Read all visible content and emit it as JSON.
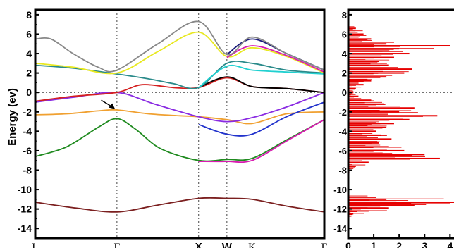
{
  "chart_data": [
    {
      "type": "line",
      "title": "",
      "ylabel": "Energy (ev)",
      "xlabel": "",
      "ylim": [
        -15,
        8.5
      ],
      "xlim": [
        0,
        4.6
      ],
      "yticks": [
        8,
        6,
        4,
        2,
        0,
        -2,
        -4,
        -6,
        -8,
        -10,
        -12,
        -14
      ],
      "kpoints": [
        {
          "label": "L",
          "x": 0,
          "bold": false
        },
        {
          "label": "Γ",
          "x": 1.3,
          "bold": false
        },
        {
          "label": "X",
          "x": 2.6,
          "bold": true
        },
        {
          "label": "W",
          "x": 3.05,
          "bold": true
        },
        {
          "label": "K",
          "x": 3.45,
          "bold": false
        },
        {
          "label": "Γ",
          "x": 4.6,
          "bold": false
        }
      ],
      "fermi_level": 0,
      "grid": "vertical dotted lines at k-points; horizontal dotted line at 0",
      "annotation": {
        "type": "arrow",
        "from": [
          1.05,
          -0.8
        ],
        "to": [
          1.27,
          -1.7
        ]
      },
      "series": [
        {
          "color": "#7b1f1f",
          "x": [
            0,
            0.65,
            1.3,
            1.95,
            2.6,
            3.05,
            3.45,
            4.0,
            4.6
          ],
          "y": [
            -11.3,
            -11.9,
            -12.3,
            -11.6,
            -10.9,
            -10.9,
            -11.0,
            -11.7,
            -12.3
          ]
        },
        {
          "color": "#1f8a1f",
          "x": [
            0,
            0.5,
            1.0,
            1.3,
            1.6,
            2.0,
            2.6,
            3.05,
            3.45,
            4.0,
            4.6
          ],
          "y": [
            -6.6,
            -5.6,
            -3.6,
            -2.7,
            -3.8,
            -5.8,
            -7.0,
            -6.9,
            -6.8,
            -4.9,
            -2.8
          ]
        },
        {
          "color": "#d81bb0",
          "x": [
            2.6,
            3.05,
            3.45,
            4.0,
            4.6
          ],
          "y": [
            -7.1,
            -7.1,
            -7.0,
            -5.0,
            -2.8
          ]
        },
        {
          "color": "#f0a030",
          "x": [
            0,
            0.5,
            1.0,
            1.3,
            1.8,
            2.3,
            2.6,
            3.05,
            3.45,
            4.0,
            4.6
          ],
          "y": [
            -2.3,
            -2.2,
            -1.9,
            -1.8,
            -2.2,
            -2.4,
            -2.5,
            -2.8,
            -3.2,
            -2.2,
            -2.0
          ]
        },
        {
          "color": "#2233cc",
          "x": [
            2.6,
            3.05,
            3.45,
            4.0,
            4.6
          ],
          "y": [
            -3.3,
            -4.3,
            -4.3,
            -2.5,
            -1.0
          ]
        },
        {
          "color": "#8a2be2",
          "x": [
            0,
            0.6,
            1.3,
            1.9,
            2.6,
            3.05,
            3.45,
            4.0,
            4.6
          ],
          "y": [
            -1.0,
            -0.5,
            0.0,
            -1.2,
            -2.5,
            -3.0,
            -2.6,
            -1.5,
            0.0
          ]
        },
        {
          "color": "#d42020",
          "x": [
            0,
            0.6,
            1.3,
            1.7,
            2.2,
            2.6,
            3.05,
            3.45,
            4.0,
            4.6
          ],
          "y": [
            -0.9,
            -0.4,
            0.0,
            0.8,
            0.5,
            0.5,
            1.5,
            0.6,
            0.4,
            0.0
          ]
        },
        {
          "color": "#000000",
          "x": [
            2.6,
            3.05,
            3.45,
            4.0,
            4.6
          ],
          "y": [
            0.5,
            1.6,
            0.6,
            0.4,
            0.0
          ]
        },
        {
          "color": "#2a8a8a",
          "x": [
            0,
            0.6,
            1.3,
            1.8,
            2.2,
            2.6,
            3.05,
            3.45,
            4.0,
            4.6
          ],
          "y": [
            2.8,
            2.5,
            1.9,
            1.4,
            0.9,
            0.5,
            3.0,
            3.0,
            2.3,
            2.0
          ]
        },
        {
          "color": "#20d0d0",
          "x": [
            2.6,
            3.05,
            3.45,
            4.0,
            4.6
          ],
          "y": [
            0.5,
            2.7,
            2.3,
            2.1,
            1.9
          ]
        },
        {
          "color": "#e8e820",
          "x": [
            0,
            0.6,
            1.3,
            1.95,
            2.6,
            3.05,
            3.45,
            4.0,
            4.6
          ],
          "y": [
            3.0,
            2.6,
            2.0,
            4.2,
            6.2,
            3.7,
            4.6,
            3.7,
            2.0
          ]
        },
        {
          "color": "#d81bb0",
          "x": [
            3.05,
            3.45,
            4.0,
            4.6
          ],
          "y": [
            3.6,
            4.8,
            3.8,
            2.1
          ]
        },
        {
          "color": "#1a1a7a",
          "x": [
            3.05,
            3.45,
            4.0,
            4.6
          ],
          "y": [
            3.9,
            5.5,
            4.0,
            2.3
          ]
        },
        {
          "color": "#888888",
          "x": [
            0,
            0.25,
            0.6,
            1.0,
            1.3,
            1.95,
            2.6,
            3.05,
            3.45,
            4.0,
            4.6
          ],
          "y": [
            5.5,
            5.5,
            4.0,
            2.6,
            2.3,
            5.0,
            7.3,
            3.9,
            5.7,
            4.0,
            2.3
          ]
        }
      ]
    },
    {
      "type": "bar",
      "orientation": "horizontal",
      "title": "",
      "ylabel": "",
      "xlabel": "",
      "ylim": [
        -15,
        8.5
      ],
      "xticks": [
        0,
        1,
        2,
        3,
        4
      ],
      "yticks": [
        8,
        6,
        4,
        2,
        0,
        -2,
        -4,
        -6,
        -8,
        -10,
        -12,
        -14
      ],
      "color": "#e60000",
      "dos": {
        "energy": [
          6.6,
          6.0,
          5.5,
          5.0,
          4.8,
          4.5,
          4.0,
          3.6,
          3.2,
          2.8,
          2.4,
          2.0,
          1.6,
          1.2,
          0.8,
          0.4,
          0.0,
          -0.4,
          -0.8,
          -1.2,
          -1.6,
          -2.0,
          -2.4,
          -2.8,
          -3.2,
          -3.6,
          -4.0,
          -4.4,
          -4.8,
          -5.2,
          -5.6,
          -6.0,
          -6.4,
          -6.8,
          -7.2,
          -7.6,
          -8.0,
          -11.0,
          -11.3,
          -11.6,
          -11.9,
          -12.2,
          -12.5
        ],
        "value": [
          0.3,
          0.6,
          0.9,
          1.5,
          4.0,
          2.0,
          2.4,
          1.8,
          1.2,
          1.6,
          2.5,
          2.2,
          1.5,
          0.9,
          0.6,
          0.3,
          0.2,
          0.4,
          0.9,
          1.4,
          2.6,
          2.0,
          3.5,
          2.4,
          1.8,
          1.5,
          1.1,
          1.3,
          1.7,
          1.2,
          1.6,
          2.2,
          3.0,
          3.6,
          0.8,
          0.3,
          0.1,
          1.5,
          4.2,
          2.6,
          1.6,
          0.8,
          0.2
        ]
      }
    }
  ]
}
